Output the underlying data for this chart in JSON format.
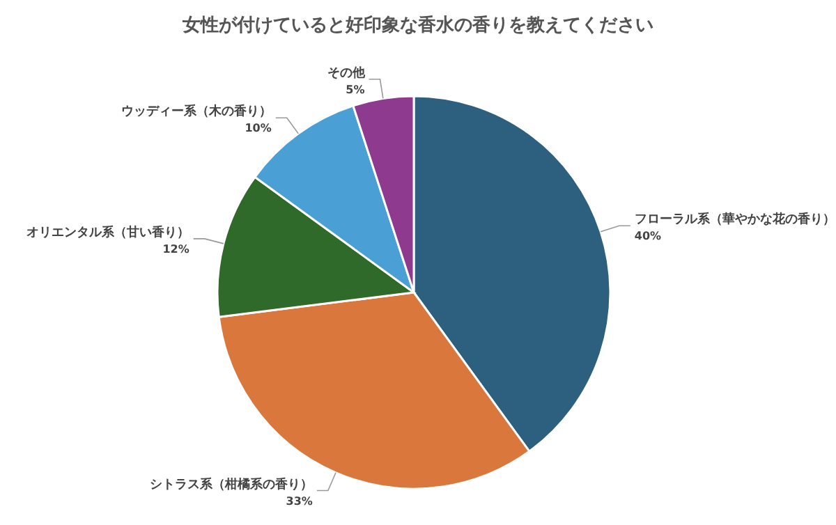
{
  "chart_data": {
    "type": "pie",
    "title": "女性が付けていると好印象な香水の香りを教えてください",
    "categories": [
      "フローラル系（華やかな花の香り）",
      "シトラス系（柑橘系の香り）",
      "オリエンタル系（甘い香り）",
      "ウッディー系（木の香り）",
      "その他"
    ],
    "values": [
      40,
      33,
      12,
      10,
      5
    ],
    "value_labels": [
      "40%",
      "33%",
      "12%",
      "10%",
      "5%"
    ],
    "colors": [
      "#2d5f7e",
      "#d9773d",
      "#2f6a2b",
      "#4a9fd5",
      "#8e3a8f"
    ]
  }
}
